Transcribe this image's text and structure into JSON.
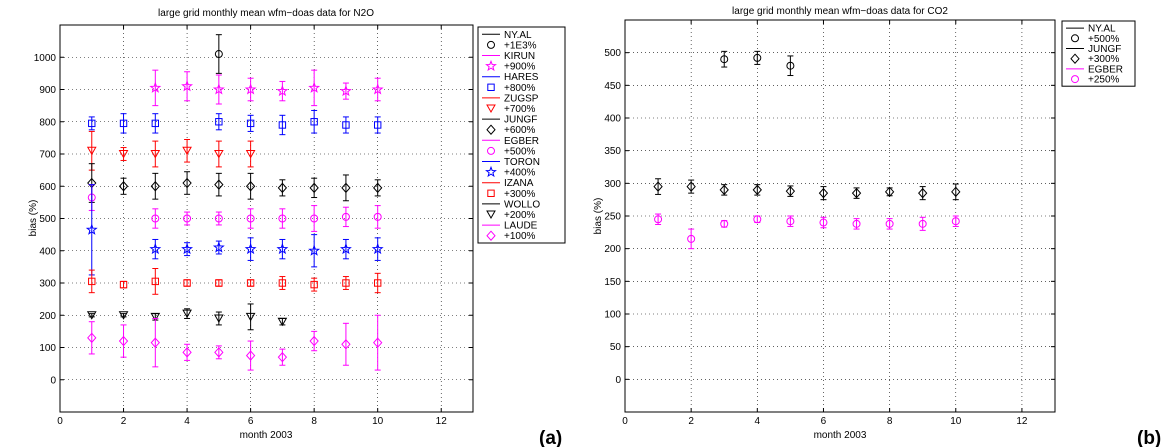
{
  "figure_labels": {
    "a": "(a)",
    "b": "(b)"
  },
  "chart_data": [
    {
      "type": "scatter",
      "title": "large grid monthly mean wfm−doas data for N2O",
      "xlabel": "month 2003",
      "ylabel": "bias (%)",
      "xlim": [
        0,
        13
      ],
      "ylim": [
        -100,
        1100
      ],
      "xticks": [
        0,
        2,
        4,
        6,
        8,
        10,
        12
      ],
      "yticks": [
        0,
        100,
        200,
        300,
        400,
        500,
        600,
        700,
        800,
        900,
        1000
      ],
      "grid": true,
      "legend_position": "right-outside",
      "series": [
        {
          "name": "NY.AL",
          "offset": "+1E3%",
          "color": "#000000",
          "marker": "circle",
          "points": [
            {
              "x": 5,
              "y": 1010,
              "err": 60
            }
          ]
        },
        {
          "name": "KIRUN",
          "offset": "+900%",
          "color": "#ff00ff",
          "marker": "star",
          "points": [
            {
              "x": 3,
              "y": 905,
              "err": 55
            },
            {
              "x": 4,
              "y": 910,
              "err": 45
            },
            {
              "x": 5,
              "y": 900,
              "err": 45
            },
            {
              "x": 6,
              "y": 900,
              "err": 35
            },
            {
              "x": 7,
              "y": 895,
              "err": 30
            },
            {
              "x": 8,
              "y": 905,
              "err": 55
            },
            {
              "x": 9,
              "y": 895,
              "err": 25
            },
            {
              "x": 10,
              "y": 900,
              "err": 35
            }
          ]
        },
        {
          "name": "HARES",
          "offset": "+800%",
          "color": "#0000ff",
          "marker": "square",
          "points": [
            {
              "x": 1,
              "y": 795,
              "err": 20
            },
            {
              "x": 2,
              "y": 795,
              "err": 30
            },
            {
              "x": 3,
              "y": 795,
              "err": 30
            },
            {
              "x": 5,
              "y": 800,
              "err": 25
            },
            {
              "x": 6,
              "y": 795,
              "err": 25
            },
            {
              "x": 7,
              "y": 790,
              "err": 30
            },
            {
              "x": 8,
              "y": 800,
              "err": 35
            },
            {
              "x": 9,
              "y": 790,
              "err": 25
            },
            {
              "x": 10,
              "y": 790,
              "err": 25
            }
          ]
        },
        {
          "name": "ZUGSP",
          "offset": "+700%",
          "color": "#ff0000",
          "marker": "triangle-down",
          "points": [
            {
              "x": 1,
              "y": 710,
              "err": 60
            },
            {
              "x": 2,
              "y": 700,
              "err": 20
            },
            {
              "x": 3,
              "y": 700,
              "err": 40
            },
            {
              "x": 4,
              "y": 710,
              "err": 35
            },
            {
              "x": 5,
              "y": 700,
              "err": 40
            },
            {
              "x": 6,
              "y": 700,
              "err": 40
            }
          ]
        },
        {
          "name": "JUNGF",
          "offset": "+600%",
          "color": "#000000",
          "marker": "diamond",
          "points": [
            {
              "x": 1,
              "y": 610,
              "err": 60
            },
            {
              "x": 2,
              "y": 600,
              "err": 25
            },
            {
              "x": 3,
              "y": 600,
              "err": 40
            },
            {
              "x": 4,
              "y": 610,
              "err": 35
            },
            {
              "x": 5,
              "y": 605,
              "err": 35
            },
            {
              "x": 6,
              "y": 600,
              "err": 40
            },
            {
              "x": 7,
              "y": 595,
              "err": 25
            },
            {
              "x": 8,
              "y": 595,
              "err": 30
            },
            {
              "x": 9,
              "y": 595,
              "err": 40
            },
            {
              "x": 10,
              "y": 595,
              "err": 25
            }
          ]
        },
        {
          "name": "EGBER",
          "offset": "+500%",
          "color": "#ff00ff",
          "marker": "circle",
          "points": [
            {
              "x": 1,
              "y": 565,
              "err": 40
            },
            {
              "x": 3,
              "y": 500,
              "err": 30
            },
            {
              "x": 4,
              "y": 500,
              "err": 20
            },
            {
              "x": 5,
              "y": 500,
              "err": 20
            },
            {
              "x": 6,
              "y": 500,
              "err": 30
            },
            {
              "x": 7,
              "y": 500,
              "err": 30
            },
            {
              "x": 8,
              "y": 500,
              "err": 40
            },
            {
              "x": 9,
              "y": 505,
              "err": 30
            },
            {
              "x": 10,
              "y": 505,
              "err": 35
            }
          ]
        },
        {
          "name": "TORON",
          "offset": "+400%",
          "color": "#0000ff",
          "marker": "star",
          "points": [
            {
              "x": 1,
              "y": 465,
              "err": 140
            },
            {
              "x": 3,
              "y": 405,
              "err": 30
            },
            {
              "x": 4,
              "y": 405,
              "err": 20
            },
            {
              "x": 5,
              "y": 410,
              "err": 20
            },
            {
              "x": 6,
              "y": 405,
              "err": 35
            },
            {
              "x": 7,
              "y": 405,
              "err": 30
            },
            {
              "x": 8,
              "y": 400,
              "err": 50
            },
            {
              "x": 9,
              "y": 405,
              "err": 30
            },
            {
              "x": 10,
              "y": 405,
              "err": 35
            }
          ]
        },
        {
          "name": "IZANA",
          "offset": "+300%",
          "color": "#ff0000",
          "marker": "square",
          "points": [
            {
              "x": 1,
              "y": 305,
              "err": 35
            },
            {
              "x": 2,
              "y": 295,
              "err": 10
            },
            {
              "x": 3,
              "y": 305,
              "err": 40
            },
            {
              "x": 4,
              "y": 300,
              "err": 10
            },
            {
              "x": 5,
              "y": 300,
              "err": 10
            },
            {
              "x": 6,
              "y": 300,
              "err": 10
            },
            {
              "x": 7,
              "y": 300,
              "err": 20
            },
            {
              "x": 8,
              "y": 295,
              "err": 20
            },
            {
              "x": 9,
              "y": 300,
              "err": 20
            },
            {
              "x": 10,
              "y": 300,
              "err": 30
            }
          ]
        },
        {
          "name": "WOLLO",
          "offset": "+200%",
          "color": "#000000",
          "marker": "triangle-down",
          "points": [
            {
              "x": 1,
              "y": 200,
              "err": 5
            },
            {
              "x": 2,
              "y": 200,
              "err": 5
            },
            {
              "x": 3,
              "y": 195,
              "err": 10
            },
            {
              "x": 4,
              "y": 205,
              "err": 15
            },
            {
              "x": 5,
              "y": 190,
              "err": 20
            },
            {
              "x": 6,
              "y": 195,
              "err": 40
            },
            {
              "x": 7,
              "y": 180,
              "err": 10
            }
          ]
        },
        {
          "name": "LAUDE",
          "offset": "+100%",
          "color": "#ff00ff",
          "marker": "diamond",
          "points": [
            {
              "x": 1,
              "y": 130,
              "err": 50
            },
            {
              "x": 2,
              "y": 120,
              "err": 50
            },
            {
              "x": 3,
              "y": 115,
              "err": 75
            },
            {
              "x": 4,
              "y": 85,
              "err": 25
            },
            {
              "x": 5,
              "y": 85,
              "err": 20
            },
            {
              "x": 6,
              "y": 75,
              "err": 45
            },
            {
              "x": 7,
              "y": 70,
              "err": 25
            },
            {
              "x": 8,
              "y": 120,
              "err": 30
            },
            {
              "x": 9,
              "y": 110,
              "err": 65
            },
            {
              "x": 10,
              "y": 115,
              "err": 85
            }
          ]
        }
      ]
    },
    {
      "type": "scatter",
      "title": "large grid monthly mean wfm−doas data for CO2",
      "xlabel": "month 2003",
      "ylabel": "bias (%)",
      "xlim": [
        0,
        13
      ],
      "ylim": [
        -50,
        550
      ],
      "xticks": [
        0,
        2,
        4,
        6,
        8,
        10,
        12
      ],
      "yticks": [
        0,
        50,
        100,
        150,
        200,
        250,
        300,
        350,
        400,
        450,
        500
      ],
      "grid": true,
      "legend_position": "top-right-outside",
      "series": [
        {
          "name": "NY.AL",
          "offset": "+500%",
          "color": "#000000",
          "marker": "circle",
          "points": [
            {
              "x": 3,
              "y": 490,
              "err": 12
            },
            {
              "x": 4,
              "y": 492,
              "err": 10
            },
            {
              "x": 5,
              "y": 480,
              "err": 15
            }
          ]
        },
        {
          "name": "JUNGF",
          "offset": "+300%",
          "color": "#000000",
          "marker": "diamond",
          "points": [
            {
              "x": 1,
              "y": 295,
              "err": 12
            },
            {
              "x": 2,
              "y": 295,
              "err": 10
            },
            {
              "x": 3,
              "y": 290,
              "err": 8
            },
            {
              "x": 4,
              "y": 290,
              "err": 8
            },
            {
              "x": 5,
              "y": 288,
              "err": 8
            },
            {
              "x": 6,
              "y": 285,
              "err": 10
            },
            {
              "x": 7,
              "y": 285,
              "err": 8
            },
            {
              "x": 8,
              "y": 287,
              "err": 6
            },
            {
              "x": 9,
              "y": 285,
              "err": 10
            },
            {
              "x": 10,
              "y": 287,
              "err": 12
            }
          ]
        },
        {
          "name": "EGBER",
          "offset": "+250%",
          "color": "#ff00ff",
          "marker": "circle",
          "points": [
            {
              "x": 1,
              "y": 245,
              "err": 8
            },
            {
              "x": 2,
              "y": 215,
              "err": 15
            },
            {
              "x": 3,
              "y": 238,
              "err": 5
            },
            {
              "x": 4,
              "y": 245,
              "err": 5
            },
            {
              "x": 5,
              "y": 242,
              "err": 8
            },
            {
              "x": 6,
              "y": 240,
              "err": 8
            },
            {
              "x": 7,
              "y": 238,
              "err": 8
            },
            {
              "x": 8,
              "y": 238,
              "err": 8
            },
            {
              "x": 9,
              "y": 238,
              "err": 10
            },
            {
              "x": 10,
              "y": 242,
              "err": 8
            }
          ]
        }
      ]
    }
  ]
}
